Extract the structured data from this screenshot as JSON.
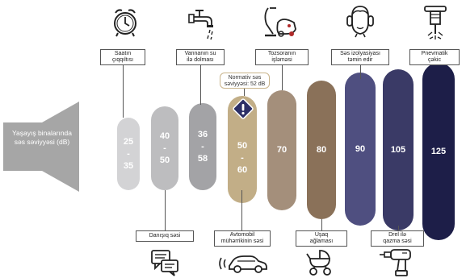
{
  "speaker": {
    "label": "Yaşayış binalarında\nsəs səviyyəsi (dB)",
    "color": "#a6a6a6"
  },
  "note": {
    "text": "Normativ səs\nsəviyyəsi: 52 dB",
    "icon": "exclamation-diamond-icon"
  },
  "bars": [
    {
      "id": "alarm",
      "value_text": [
        "25",
        "-",
        "35"
      ],
      "color": "#d3d3d5"
    },
    {
      "id": "talk",
      "value_text": [
        "40",
        "-",
        "50"
      ],
      "color": "#bdbdbf"
    },
    {
      "id": "tap",
      "value_text": [
        "36",
        "-",
        "58"
      ],
      "color": "#a3a3a6"
    },
    {
      "id": "car",
      "value_text": [
        "50",
        "-",
        "60"
      ],
      "color": "#c2ae87"
    },
    {
      "id": "vacuum",
      "value_text": [
        "70"
      ],
      "color": "#a48f7b"
    },
    {
      "id": "baby",
      "value_text": [
        "80"
      ],
      "color": "#8a7159"
    },
    {
      "id": "wall",
      "value_text": [
        "90"
      ],
      "color": "#4f4f80"
    },
    {
      "id": "drill",
      "value_text": [
        "105"
      ],
      "color": "#3a3a66"
    },
    {
      "id": "jack",
      "value_text": [
        "125"
      ],
      "color": "#1d1e48"
    }
  ],
  "top_labels": [
    {
      "id": "alarm",
      "text": "Saatın\nçıqqıltısı",
      "icon": "alarm-clock-icon"
    },
    {
      "id": "tap",
      "text": "Vannanın su\nilə dolması",
      "icon": "water-tap-icon"
    },
    {
      "id": "vacuum",
      "text": "Tozsoranın\nişləməsi",
      "icon": "vacuum-cleaner-icon"
    },
    {
      "id": "wall",
      "text": "Səs izolyasiyası\ntəmin edir",
      "icon": "head-with-ear-protection-icon"
    },
    {
      "id": "jack",
      "text": "Pnevmatik\nçəkic",
      "icon": "jackhammer-icon"
    }
  ],
  "bottom_labels": [
    {
      "id": "talk",
      "text": "Danışıq səsi",
      "icon": "speech-bubbles-icon"
    },
    {
      "id": "car",
      "text": "Avtomobil\nmühərrikinin səsi",
      "icon": "car-sound-icon"
    },
    {
      "id": "baby",
      "text": "Uşaq\nağlaması",
      "icon": "baby-stroller-icon"
    },
    {
      "id": "drill",
      "text": "Drel ilə\nqazma səsi",
      "icon": "power-drill-icon"
    }
  ]
}
